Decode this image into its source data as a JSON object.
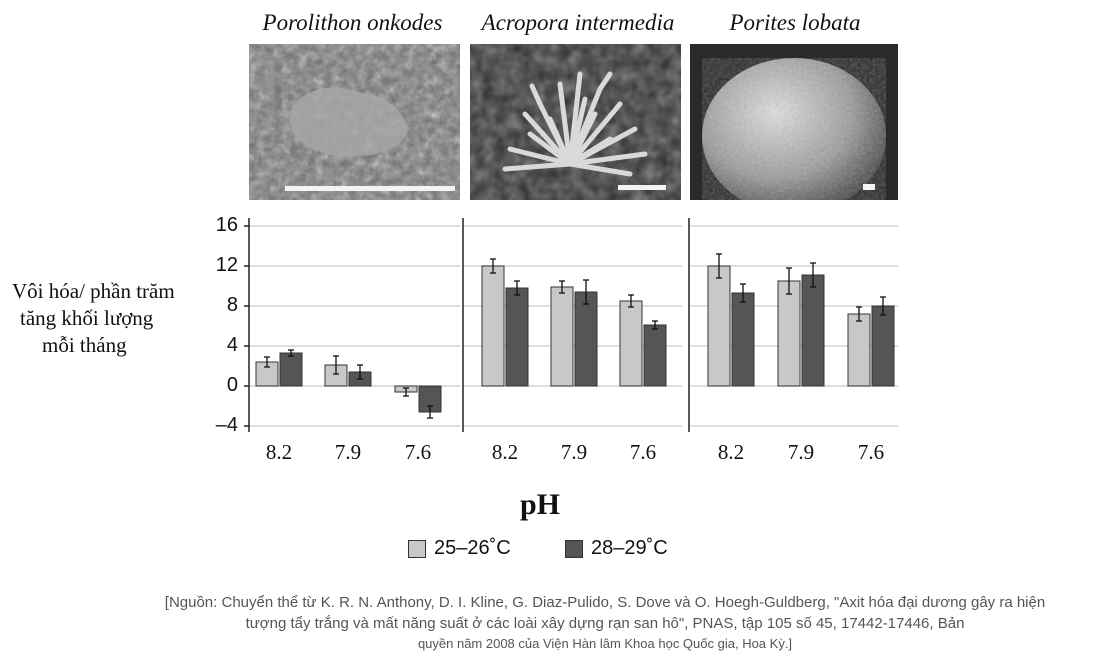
{
  "panels": [
    {
      "title": "Porolithon onkodes"
    },
    {
      "title": "Acropora intermedia"
    },
    {
      "title": "Porites lobata"
    }
  ],
  "y_axis_label_lines": [
    "Vôi hóa/ phần trăm",
    "tăng khối lượng",
    "mỗi tháng"
  ],
  "x_axis_label": "pH",
  "legend": [
    {
      "label": "25–26˚C",
      "color": "#c8c8c8"
    },
    {
      "label": "28–29˚C",
      "color": "#555555"
    }
  ],
  "source": {
    "line1": "[Nguồn: Chuyển thể từ K. R. N. Anthony, D. I. Kline, G. Diaz-Pulido, S. Dove và O. Hoegh-Guldberg, \"Axit hóa đại dương gây ra hiện",
    "line2": "tượng tẩy trắng và mất năng suất ở các loài xây dựng rạn san hô\", PNAS, tập 105 số 45, 17442-17446, Bản",
    "line3": "quyền năm 2008 của Viện Hàn lâm Khoa học Quốc gia, Hoa Kỳ.]"
  },
  "chart_data": {
    "type": "bar",
    "categories": [
      "8.2",
      "7.9",
      "7.6"
    ],
    "xlabel": "pH",
    "ylabel": "Vôi hóa/ phần trăm tăng khối lượng mỗi tháng",
    "ylim": [
      -4,
      16
    ],
    "yticks": [
      "16",
      "12",
      "8",
      "4",
      "0",
      "–4"
    ],
    "ytick_values": [
      16,
      12,
      8,
      4,
      0,
      -4
    ],
    "grid": true,
    "panels": [
      {
        "title": "Porolithon onkodes",
        "series": [
          {
            "name": "25–26˚C",
            "values": [
              2.4,
              2.1,
              -0.6
            ],
            "errors": [
              0.5,
              0.9,
              0.4
            ]
          },
          {
            "name": "28–29˚C",
            "values": [
              3.3,
              1.4,
              -2.6
            ],
            "errors": [
              0.3,
              0.7,
              0.6
            ]
          }
        ]
      },
      {
        "title": "Acropora intermedia",
        "series": [
          {
            "name": "25–26˚C",
            "values": [
              12.0,
              9.9,
              8.5
            ],
            "errors": [
              0.7,
              0.6,
              0.6
            ]
          },
          {
            "name": "28–29˚C",
            "values": [
              9.8,
              9.4,
              6.1
            ],
            "errors": [
              0.7,
              1.2,
              0.4
            ]
          }
        ]
      },
      {
        "title": "Porites lobata",
        "series": [
          {
            "name": "25–26˚C",
            "values": [
              12.0,
              10.5,
              7.2
            ],
            "errors": [
              1.2,
              1.3,
              0.7
            ]
          },
          {
            "name": "28–29˚C",
            "values": [
              9.3,
              11.1,
              8.0
            ],
            "errors": [
              0.9,
              1.2,
              0.9
            ]
          }
        ]
      }
    ]
  }
}
